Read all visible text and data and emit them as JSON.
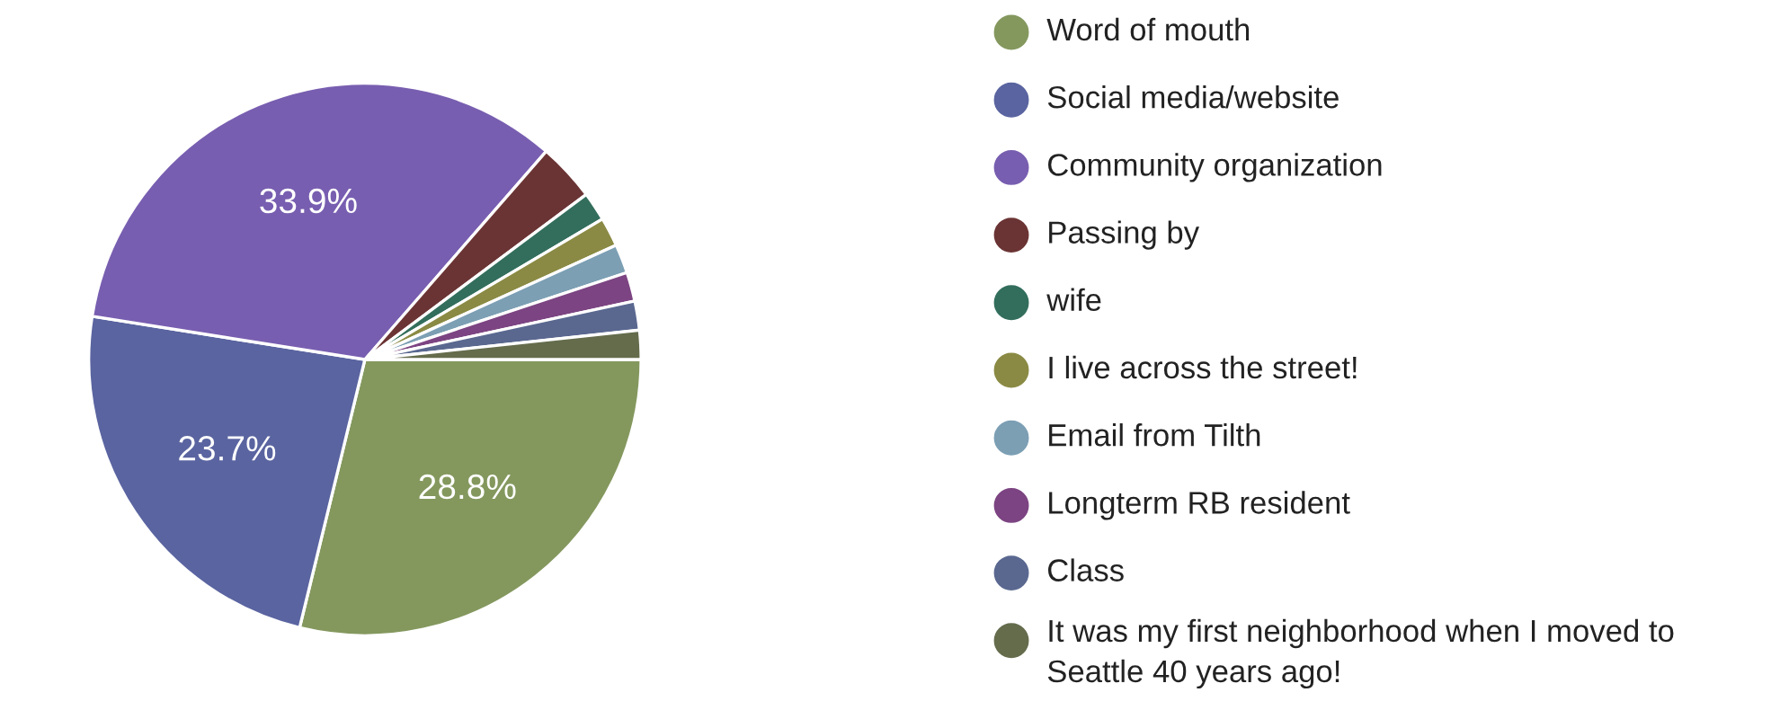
{
  "chart_data": {
    "type": "pie",
    "categories": [
      "Word of mouth",
      "Social media/website",
      "Community organization",
      "Passing by",
      "wife",
      "I live across the street!",
      "Email from Tilth",
      "Longterm RB resident",
      "Class",
      "It was my first neighborhood when I moved to Seattle 40 years ago!"
    ],
    "values": [
      28.8,
      23.7,
      33.9,
      3.4,
      1.7,
      1.7,
      1.7,
      1.7,
      1.7,
      1.7
    ],
    "colors": [
      "#84985e",
      "#5a64a0",
      "#785eb0",
      "#6b3434",
      "#336e5c",
      "#8a8a44",
      "#7c9fb4",
      "#7c4482",
      "#5a6890",
      "#646c4c"
    ],
    "value_labels": [
      "28.8%",
      "23.7%",
      "33.9%",
      null,
      null,
      null,
      null,
      null,
      null,
      null
    ],
    "legend": "right"
  }
}
